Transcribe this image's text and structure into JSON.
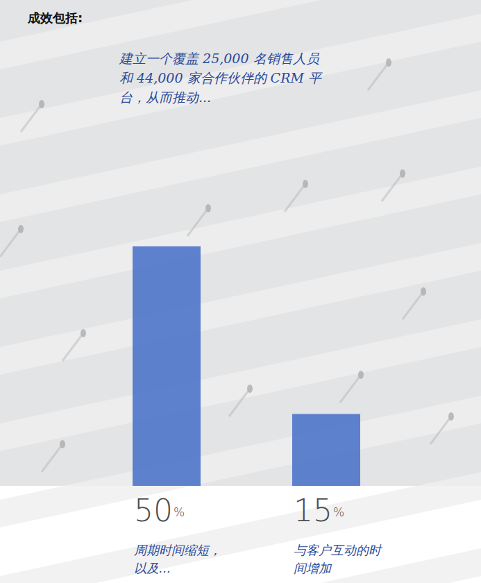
{
  "chart_data": {
    "type": "bar",
    "title": "成效包括:",
    "subtitle": "建立一个覆盖 25,000 名销售人员和 44,000 家合作伙伴的 CRM 平台，从而推动...",
    "categories": [
      "周期时间缩短，以及...",
      "与客户互动的时间增加"
    ],
    "values": [
      50,
      15
    ],
    "value_labels": [
      "50%",
      "15%"
    ],
    "color": "#4a72c8",
    "ylim": [
      0,
      50
    ],
    "grid": false,
    "tick_labels": false,
    "data_labels": true
  }
}
